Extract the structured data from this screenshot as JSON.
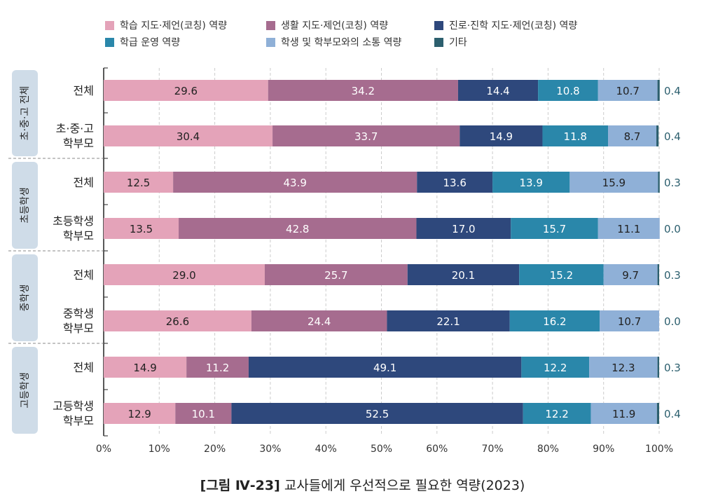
{
  "chart_data": {
    "type": "bar",
    "orientation": "horizontal",
    "stacked": "percent",
    "caption_label": "[그림 Ⅳ-23]",
    "caption_title": "교사들에게 우선적으로 필요한 역량(2023)",
    "xlim": [
      0,
      100
    ],
    "xticks": [
      "0%",
      "10%",
      "20%",
      "30%",
      "40%",
      "50%",
      "60%",
      "70%",
      "80%",
      "90%",
      "100%"
    ],
    "grid": "vertical dashed",
    "legend_position": "top",
    "groups": [
      {
        "label": "초·중·고 전체",
        "rows": [
          "전체",
          "초·중·고\n학부모"
        ]
      },
      {
        "label": "초등학생",
        "rows": [
          "전체",
          "초등학생\n학부모"
        ]
      },
      {
        "label": "중학생",
        "rows": [
          "전체",
          "중학생\n학부모"
        ]
      },
      {
        "label": "고등학생",
        "rows": [
          "전체",
          "고등학생\n학부모"
        ]
      }
    ],
    "series": [
      {
        "name": "학습 지도·제언(코칭) 역량",
        "color": "#e4a3b9",
        "values": [
          29.6,
          30.4,
          12.5,
          13.5,
          29.0,
          26.6,
          14.9,
          12.9
        ]
      },
      {
        "name": "생활 지도·제언(코칭) 역량",
        "color": "#a66c8f",
        "values": [
          34.2,
          33.7,
          43.9,
          42.8,
          25.7,
          24.4,
          11.2,
          10.1
        ]
      },
      {
        "name": "진로·진학 지도·제언(코칭) 역량",
        "color": "#2e487c",
        "values": [
          14.4,
          14.9,
          13.6,
          17.0,
          20.1,
          22.1,
          49.1,
          52.5
        ]
      },
      {
        "name": "학급 운영 역량",
        "color": "#2a87aa",
        "values": [
          10.8,
          11.8,
          13.9,
          15.7,
          15.2,
          16.2,
          12.2,
          12.2
        ]
      },
      {
        "name": "학생 및 학부모와의 소통 역량",
        "color": "#8fb0d7",
        "values": [
          10.7,
          8.7,
          15.9,
          11.1,
          9.7,
          10.7,
          12.3,
          11.9
        ]
      },
      {
        "name": "기타",
        "color": "#2c5f6e",
        "values": [
          0.4,
          0.4,
          0.3,
          0.0,
          0.3,
          0.0,
          0.3,
          0.4
        ]
      }
    ]
  }
}
